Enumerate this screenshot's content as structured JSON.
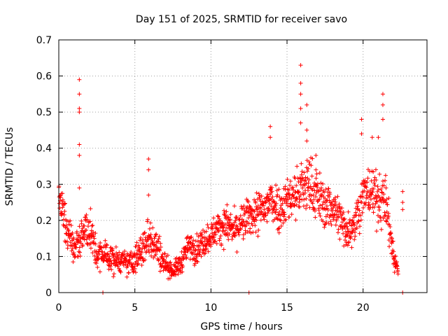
{
  "chart_data": {
    "type": "scatter",
    "title": "Day 151 of 2025, SRMTID for receiver savo",
    "xlabel": "GPS time / hours",
    "ylabel": "SRMTID / TECUs",
    "xlim": [
      0,
      24.2
    ],
    "ylim": [
      0,
      0.7
    ],
    "xticks": [
      0,
      5,
      10,
      15,
      20
    ],
    "yticks": [
      0,
      0.1,
      0.2,
      0.3,
      0.4,
      0.5,
      0.6,
      0.7
    ],
    "xtick_labels": [
      "0",
      "5",
      "10",
      "15",
      "20"
    ],
    "ytick_labels": [
      "0",
      "0.1",
      "0.2",
      "0.3",
      "0.4",
      "0.5",
      "0.6",
      "0.7"
    ],
    "grid": true,
    "marker": "+",
    "color": "#ff0000",
    "series": [
      {
        "name": "SRMTID",
        "profile": [
          [
            0.0,
            0.28,
            0.05
          ],
          [
            0.5,
            0.18,
            0.07
          ],
          [
            1.0,
            0.12,
            0.04
          ],
          [
            1.5,
            0.16,
            0.05
          ],
          [
            2.0,
            0.18,
            0.06
          ],
          [
            2.5,
            0.1,
            0.04
          ],
          [
            3.0,
            0.11,
            0.04
          ],
          [
            3.5,
            0.09,
            0.04
          ],
          [
            4.0,
            0.09,
            0.03
          ],
          [
            4.5,
            0.08,
            0.03
          ],
          [
            5.0,
            0.09,
            0.04
          ],
          [
            5.5,
            0.12,
            0.05
          ],
          [
            6.0,
            0.16,
            0.06
          ],
          [
            6.5,
            0.12,
            0.05
          ],
          [
            7.0,
            0.08,
            0.03
          ],
          [
            7.5,
            0.06,
            0.02
          ],
          [
            8.0,
            0.08,
            0.03
          ],
          [
            8.5,
            0.13,
            0.03
          ],
          [
            9.0,
            0.12,
            0.04
          ],
          [
            9.5,
            0.14,
            0.04
          ],
          [
            10.0,
            0.16,
            0.04
          ],
          [
            10.5,
            0.18,
            0.04
          ],
          [
            11.0,
            0.19,
            0.05
          ],
          [
            11.5,
            0.17,
            0.05
          ],
          [
            12.0,
            0.19,
            0.05
          ],
          [
            12.5,
            0.21,
            0.05
          ],
          [
            13.0,
            0.22,
            0.06
          ],
          [
            13.5,
            0.23,
            0.06
          ],
          [
            14.0,
            0.26,
            0.07
          ],
          [
            14.5,
            0.23,
            0.06
          ],
          [
            15.0,
            0.26,
            0.06
          ],
          [
            15.5,
            0.27,
            0.07
          ],
          [
            16.0,
            0.29,
            0.08
          ],
          [
            16.5,
            0.3,
            0.08
          ],
          [
            17.0,
            0.27,
            0.07
          ],
          [
            17.5,
            0.24,
            0.06
          ],
          [
            18.0,
            0.24,
            0.06
          ],
          [
            18.5,
            0.2,
            0.06
          ],
          [
            19.0,
            0.17,
            0.05
          ],
          [
            19.5,
            0.2,
            0.06
          ],
          [
            20.0,
            0.27,
            0.06
          ],
          [
            20.5,
            0.28,
            0.07
          ],
          [
            21.0,
            0.26,
            0.07
          ],
          [
            21.5,
            0.25,
            0.07
          ],
          [
            22.0,
            0.1,
            0.04
          ],
          [
            22.3,
            0.06,
            0.02
          ]
        ],
        "extra_points": [
          [
            1.35,
            0.59
          ],
          [
            1.35,
            0.55
          ],
          [
            1.35,
            0.51
          ],
          [
            1.35,
            0.5
          ],
          [
            1.35,
            0.41
          ],
          [
            1.35,
            0.38
          ],
          [
            1.35,
            0.29
          ],
          [
            5.9,
            0.37
          ],
          [
            5.9,
            0.34
          ],
          [
            5.9,
            0.27
          ],
          [
            15.9,
            0.63
          ],
          [
            15.9,
            0.58
          ],
          [
            15.9,
            0.55
          ],
          [
            15.9,
            0.51
          ],
          [
            15.9,
            0.47
          ],
          [
            16.3,
            0.52
          ],
          [
            16.3,
            0.45
          ],
          [
            16.3,
            0.42
          ],
          [
            13.9,
            0.46
          ],
          [
            13.9,
            0.43
          ],
          [
            16.9,
            0.38
          ],
          [
            16.9,
            0.34
          ],
          [
            19.9,
            0.48
          ],
          [
            19.9,
            0.44
          ],
          [
            21.3,
            0.55
          ],
          [
            21.3,
            0.52
          ],
          [
            21.3,
            0.48
          ],
          [
            21.0,
            0.43
          ],
          [
            20.6,
            0.43
          ],
          [
            2.9,
            0.0
          ],
          [
            12.5,
            0.0
          ],
          [
            22.6,
            0.0
          ],
          [
            22.6,
            0.28
          ],
          [
            22.6,
            0.25
          ],
          [
            22.6,
            0.23
          ]
        ]
      }
    ]
  }
}
